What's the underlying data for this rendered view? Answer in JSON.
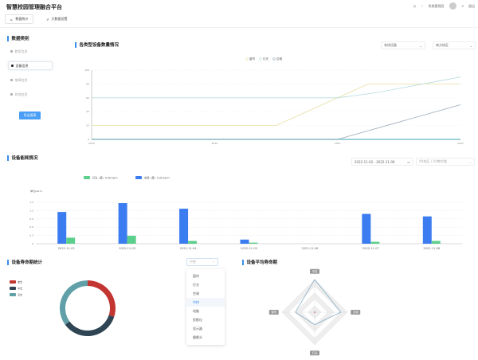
{
  "header": {
    "title": "智慧校园管理融合平台",
    "user": "系统管理员",
    "logout": "退出"
  },
  "tabs": [
    {
      "label": "数据统计",
      "icon": "chart-icon"
    },
    {
      "label": "大数据设置",
      "icon": "share-icon"
    }
  ],
  "sidebar": {
    "title": "数据类别",
    "items": [
      "教室信息",
      "设备信息",
      "故障信息",
      "其他信息"
    ],
    "active": 1,
    "export_label": "导出报表"
  },
  "device_count": {
    "title": "各类型设备数量情况",
    "filter1": "有线设备",
    "filter2": "南方校区"
  },
  "energy": {
    "title": "设备能耗情况",
    "date_range": "2022-11-02 - 2022-11-09",
    "location": "XX校区 / XX教学楼"
  },
  "lifecycle": {
    "title": "设备寿命期统计",
    "selected": "中控",
    "options": [
      "窗帘",
      "灯光",
      "空调",
      "中控",
      "电脑",
      "投影仪",
      "显示器",
      "摄像头"
    ]
  },
  "avg_life": {
    "title": "设备平均寿命期"
  },
  "colors": {
    "accent": "#3a8ee6",
    "button": "#4a9ef5"
  },
  "chart_data": [
    {
      "type": "line",
      "x_ticks": [
        "2019",
        "2020",
        "2021",
        "2022"
      ],
      "ylim": [
        0,
        100
      ],
      "y_ticks": [
        0,
        20,
        40,
        60,
        80,
        100
      ],
      "legend": "top-center",
      "grid": true,
      "series": [
        {
          "name": "窗帘",
          "color": "#e6dfa0",
          "points": [
            [
              2019,
              20
            ],
            [
              2020.5,
              20
            ],
            [
              2021.25,
              80
            ],
            [
              2022,
              80
            ]
          ]
        },
        {
          "name": "灯光",
          "color": "#b9dcdc",
          "points": [
            [
              2019,
              60
            ],
            [
              2021,
              60
            ],
            [
              2021.3,
              67
            ],
            [
              2022,
              90
            ]
          ]
        },
        {
          "name": "空调",
          "color": "#9aaab8",
          "points": [
            [
              2019,
              0
            ],
            [
              2021,
              0
            ],
            [
              2022,
              50
            ]
          ]
        }
      ]
    },
    {
      "type": "bar",
      "ylabel": "单位(kw·h)",
      "ylim": [
        0,
        1.5
      ],
      "y_ticks": [
        "0",
        "0.3",
        "0.6",
        "0.9",
        "1.2",
        "1.5"
      ],
      "legend": "top-left",
      "grid": true,
      "categories": [
        "2022-11-02",
        "2022-11-03",
        "2022-11-04",
        "2022-11-05",
        "2022-11-06",
        "2022-11-07",
        "2022-11-08"
      ],
      "series": [
        {
          "name": "空调（度）0.00 kw·h",
          "color": "#3b7cf0",
          "values": [
            1.15,
            1.47,
            1.27,
            0.15,
            0,
            1.08,
            0.99
          ]
        },
        {
          "name": "灯光（度）0.00 kw·h",
          "color": "#5ccf8c",
          "values": [
            0.22,
            0.29,
            0.1,
            0.04,
            0,
            0.07,
            0.1
          ]
        }
      ]
    },
    {
      "type": "pie",
      "legend": "top-left",
      "slices": [
        {
          "name": "老年",
          "value": 30,
          "color": "#c23531"
        },
        {
          "name": "中年",
          "value": 35,
          "color": "#2f4554"
        },
        {
          "name": "青年",
          "value": 35,
          "color": "#61a0a8"
        }
      ]
    },
    {
      "type": "radar",
      "max": 100,
      "indicators": [
        "中控",
        "空调",
        "灯光",
        "窗帘"
      ],
      "values": [
        100,
        80,
        38,
        59
      ],
      "color": "#7aa6c2"
    }
  ]
}
